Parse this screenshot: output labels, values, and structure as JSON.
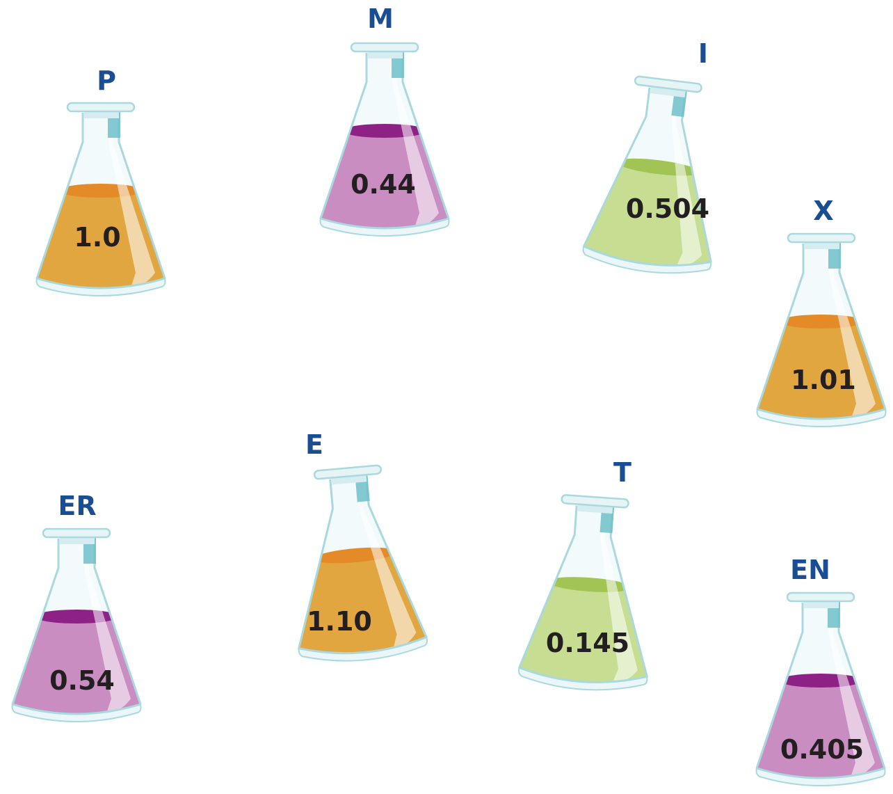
{
  "flasks": [
    {
      "id": "p",
      "label": "P",
      "value": "1.0",
      "liquid": "orange"
    },
    {
      "id": "m",
      "label": "M",
      "value": "0.44",
      "liquid": "purple"
    },
    {
      "id": "i",
      "label": "I",
      "value": "0.504",
      "liquid": "green"
    },
    {
      "id": "x",
      "label": "X",
      "value": "1.01",
      "liquid": "orange"
    },
    {
      "id": "er",
      "label": "ER",
      "value": "0.54",
      "liquid": "purple"
    },
    {
      "id": "e",
      "label": "E",
      "value": "1.10",
      "liquid": "orange"
    },
    {
      "id": "t",
      "label": "T",
      "value": "0.145",
      "liquid": "green"
    },
    {
      "id": "en",
      "label": "EN",
      "value": "0.405",
      "liquid": "purple"
    }
  ],
  "colors": {
    "label_text": "#1a4e92",
    "value_text": "#231f20",
    "glass_outline": "#a9d9de",
    "neck_band": "#6fc0c9",
    "liquids": {
      "orange": {
        "body": "#e1a640",
        "surface": "#e48a26"
      },
      "purple": {
        "body": "#c98dc1",
        "surface": "#8d2186"
      },
      "green": {
        "body": "#c6dd92",
        "surface": "#a1c454"
      }
    }
  }
}
